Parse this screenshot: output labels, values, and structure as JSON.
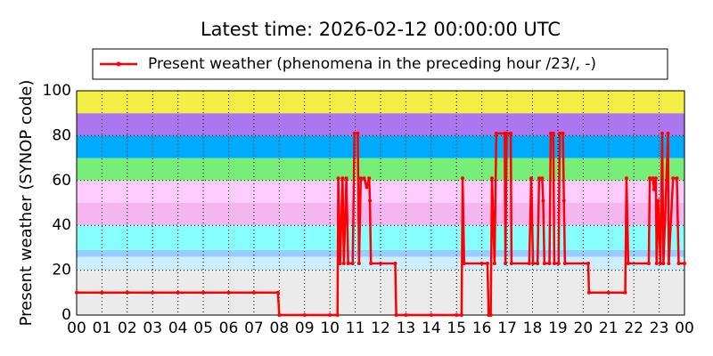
{
  "chart_data": {
    "type": "line",
    "title": "Latest time: 2026-02-12 00:00:00 UTC",
    "ylabel": "Present weather (SYNOP code)",
    "x": [
      0,
      1,
      2,
      3,
      4,
      5,
      6,
      7,
      7.95,
      8,
      9,
      10,
      10.3,
      10.33,
      10.4,
      10.5,
      10.55,
      10.65,
      10.72,
      10.9,
      10.97,
      11.1,
      11.15,
      11.22,
      11.35,
      11.45,
      11.55,
      11.58,
      11.62,
      12,
      12.58,
      12.62,
      13,
      14,
      15,
      15.2,
      15.24,
      15.3,
      16,
      16.22,
      16.27,
      16.35,
      16.4,
      16.5,
      16.57,
      16.9,
      16.93,
      16.98,
      17.14,
      17.17,
      17.87,
      17.95,
      18.02,
      18.2,
      18.26,
      18.38,
      18.42,
      18.47,
      18.67,
      18.72,
      18.82,
      18.86,
      19.03,
      19.07,
      19.2,
      19.24,
      19.28,
      20.2,
      20.23,
      21,
      21.66,
      21.71,
      21.78,
      22.59,
      22.63,
      22.75,
      22.8,
      22.87,
      22.9,
      22.96,
      23.05,
      23.12,
      23.17,
      23.35,
      23.38,
      23.55,
      23.7,
      23.77,
      24
    ],
    "series": [
      {
        "name": "Present weather (phenomena in the preceding hour /23/, -)",
        "color": "#ff0000",
        "values": [
          10,
          10,
          10,
          10,
          10,
          10,
          10,
          10,
          10,
          0,
          0,
          0,
          0,
          61,
          23,
          61,
          23,
          61,
          23,
          23,
          81,
          81,
          23,
          61,
          61,
          57,
          61,
          51,
          23,
          23,
          23,
          0,
          0,
          0,
          0,
          0,
          61,
          23,
          23,
          23,
          0,
          0,
          61,
          23,
          81,
          81,
          23,
          81,
          81,
          23,
          23,
          61,
          23,
          23,
          61,
          61,
          51,
          23,
          23,
          81,
          81,
          23,
          23,
          81,
          81,
          51,
          23,
          23,
          10,
          10,
          10,
          61,
          23,
          23,
          61,
          61,
          56,
          61,
          23,
          51,
          23,
          81,
          23,
          81,
          23,
          61,
          61,
          23,
          23
        ]
      }
    ],
    "xlim": [
      0,
      24
    ],
    "xticks": [
      {
        "value": 0,
        "label": "00"
      },
      {
        "value": 1,
        "label": "01"
      },
      {
        "value": 2,
        "label": "02"
      },
      {
        "value": 3,
        "label": "03"
      },
      {
        "value": 4,
        "label": "04"
      },
      {
        "value": 5,
        "label": "05"
      },
      {
        "value": 6,
        "label": "06"
      },
      {
        "value": 7,
        "label": "07"
      },
      {
        "value": 8,
        "label": "08"
      },
      {
        "value": 9,
        "label": "09"
      },
      10,
      11,
      12,
      13,
      14,
      15,
      16,
      17,
      18,
      19,
      20,
      21,
      22,
      23,
      {
        "value": 24,
        "label": "00"
      }
    ],
    "ylim": [
      0,
      100
    ],
    "yticks": [
      0,
      20,
      40,
      60,
      80,
      100
    ],
    "grid": true,
    "legend": "top",
    "bands": [
      {
        "from": 0,
        "to": 20,
        "color": "#ebebeb"
      },
      {
        "from": 20,
        "to": 26,
        "color": "#cceeff"
      },
      {
        "from": 26,
        "to": 29,
        "color": "#99ccff"
      },
      {
        "from": 29,
        "to": 40,
        "color": "#88ffff"
      },
      {
        "from": 40,
        "to": 50,
        "color": "#f5b5ee"
      },
      {
        "from": 50,
        "to": 60,
        "color": "#ffccff"
      },
      {
        "from": 60,
        "to": 70,
        "color": "#77ee77"
      },
      {
        "from": 70,
        "to": 80,
        "color": "#00aaff"
      },
      {
        "from": 80,
        "to": 90,
        "color": "#aa77ee"
      },
      {
        "from": 90,
        "to": 100,
        "color": "#f5ee44"
      }
    ]
  }
}
